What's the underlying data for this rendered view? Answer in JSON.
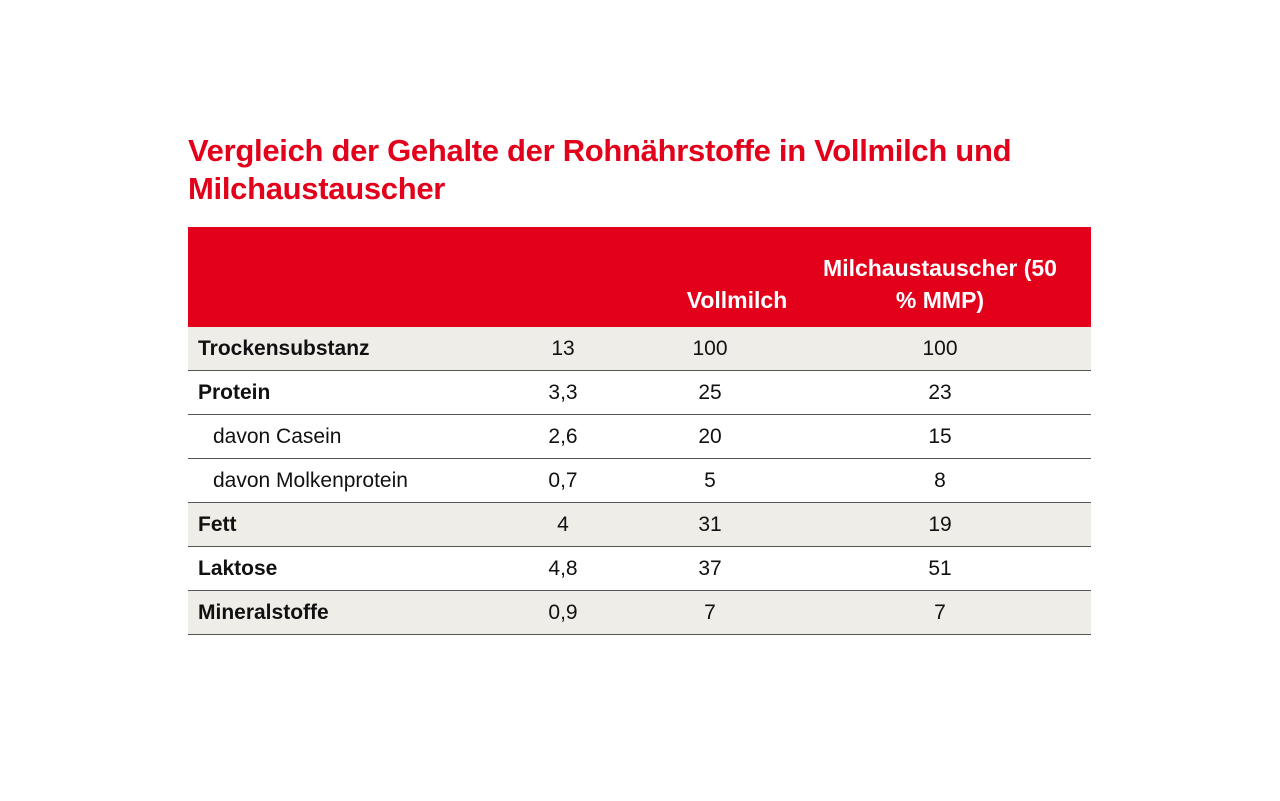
{
  "title": "Vergleich der Gehalte der Rohnährstoffe in Vollmilch und Milchaustauscher",
  "table": {
    "header": [
      "Vollmilch",
      "Milchaustauscher (50 % MMP)"
    ],
    "rows": [
      [
        "Trockensubstanz",
        13,
        100,
        100
      ],
      [
        "Protein",
        "3,3",
        25,
        23
      ],
      [
        "davon Casein",
        "2,6",
        20,
        15
      ],
      [
        "davon Molkenprotein",
        "0,7",
        5,
        8
      ],
      [
        "Fett",
        4,
        31,
        19
      ],
      [
        "Laktose",
        "4,8",
        37,
        51
      ],
      [
        "Mineralstoffe",
        "0,9",
        7,
        7
      ]
    ]
  }
}
